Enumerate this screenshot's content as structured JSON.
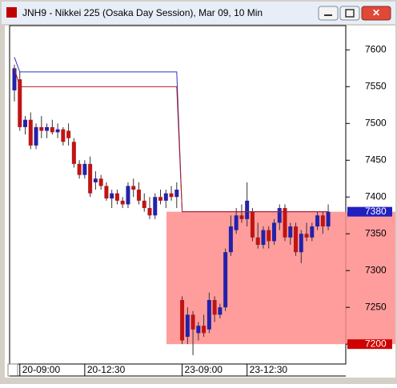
{
  "chart_data": {
    "type": "candlestick",
    "title": "JNH9 - Nikkei 225 (Osaka Day Session), Mar 09, 10 Min",
    "categories": [
      null,
      "20-09:00",
      null,
      null,
      null,
      null,
      null,
      null,
      null,
      null,
      null,
      null,
      null,
      "20-12:30",
      null,
      null,
      null,
      null,
      null,
      null,
      null,
      null,
      null,
      null,
      null,
      null,
      null,
      null,
      null,
      null,
      null,
      "23-09:00",
      null,
      null,
      null,
      null,
      null,
      null,
      null,
      null,
      null,
      null,
      null,
      "23-12:30",
      null,
      null,
      null,
      null,
      null,
      null,
      null,
      null,
      null,
      null,
      null,
      null,
      null,
      null,
      null
    ],
    "open": [
      7545,
      7560,
      7495,
      7505,
      7470,
      7495,
      7490,
      7495,
      7488,
      7492,
      7490,
      7475,
      7445,
      7430,
      7445,
      7420,
      7425,
      7415,
      7398,
      7405,
      7395,
      7390,
      7415,
      7410,
      7395,
      7385,
      7375,
      7400,
      7395,
      7405,
      7400,
      7260,
      7210,
      7240,
      7215,
      7225,
      7220,
      7260,
      7240,
      7250,
      7325,
      7355,
      7375,
      7370,
      7380,
      7345,
      7335,
      7355,
      7340,
      7365,
      7385,
      7345,
      7360,
      7325,
      7350,
      7345,
      7360,
      7375,
      7360
    ],
    "high": [
      7580,
      7570,
      7510,
      7515,
      7500,
      7510,
      7500,
      7505,
      7500,
      7495,
      7500,
      7480,
      7450,
      7450,
      7455,
      7435,
      7430,
      7420,
      7410,
      7410,
      7400,
      7420,
      7425,
      7420,
      7405,
      7400,
      7405,
      7410,
      7410,
      7415,
      7420,
      7265,
      7250,
      7245,
      7230,
      7240,
      7270,
      7265,
      7255,
      7330,
      7375,
      7385,
      7390,
      7420,
      7385,
      7365,
      7360,
      7360,
      7370,
      7390,
      7390,
      7365,
      7365,
      7355,
      7365,
      7365,
      7380,
      7380,
      7390
    ],
    "low": [
      7530,
      7490,
      7485,
      7465,
      7465,
      7480,
      7480,
      7485,
      7480,
      7470,
      7470,
      7440,
      7425,
      7425,
      7400,
      7410,
      7410,
      7395,
      7385,
      7390,
      7385,
      7385,
      7400,
      7390,
      7380,
      7370,
      7370,
      7390,
      7385,
      7395,
      7385,
      7200,
      7200,
      7185,
      7205,
      7210,
      7215,
      7230,
      7235,
      7245,
      7320,
      7350,
      7365,
      7360,
      7340,
      7330,
      7330,
      7330,
      7335,
      7355,
      7340,
      7335,
      7320,
      7310,
      7340,
      7340,
      7355,
      7350,
      7355
    ],
    "close": [
      7575,
      7495,
      7505,
      7470,
      7495,
      7490,
      7495,
      7488,
      7492,
      7475,
      7480,
      7445,
      7430,
      7445,
      7405,
      7425,
      7415,
      7398,
      7405,
      7395,
      7390,
      7415,
      7410,
      7395,
      7385,
      7375,
      7400,
      7395,
      7405,
      7400,
      7410,
      7205,
      7240,
      7220,
      7225,
      7215,
      7260,
      7240,
      7250,
      7325,
      7360,
      7375,
      7370,
      7395,
      7345,
      7335,
      7355,
      7340,
      7365,
      7385,
      7345,
      7360,
      7325,
      7350,
      7345,
      7360,
      7375,
      7360,
      7380
    ],
    "up_color": "#2222aa",
    "down_color": "#c01414",
    "lines": [
      {
        "color": "#3030c8",
        "values": [
          7590,
          7570,
          7570,
          7570,
          7570,
          7570,
          7570,
          7570,
          7570,
          7570,
          7570,
          7570,
          7570,
          7570,
          7570,
          7570,
          7570,
          7570,
          7570,
          7570,
          7570,
          7570,
          7570,
          7570,
          7570,
          7570,
          7570,
          7570,
          7570,
          7570,
          7570,
          7380,
          7380,
          7380,
          7380,
          7380,
          7380,
          7380,
          7380,
          7380,
          7380,
          7380,
          7380,
          7380,
          7380,
          7380,
          7380,
          7380,
          7380,
          7380,
          7380,
          7380,
          7380,
          7380,
          7380,
          7380,
          7380,
          7380,
          7380
        ]
      },
      {
        "color": "#b02020",
        "values": [
          7575,
          7550,
          7550,
          7550,
          7550,
          7550,
          7550,
          7550,
          7550,
          7550,
          7550,
          7550,
          7550,
          7550,
          7550,
          7550,
          7550,
          7550,
          7550,
          7550,
          7550,
          7550,
          7550,
          7550,
          7550,
          7550,
          7550,
          7550,
          7550,
          7550,
          7550,
          7380,
          7380,
          7380,
          7380,
          7380,
          7380,
          7380,
          7380,
          7380,
          7380,
          7380,
          7380,
          7380,
          7380,
          7380,
          7380,
          7380,
          7380,
          7380,
          7380,
          7380,
          7380,
          7380,
          7380,
          7380,
          7380,
          7380,
          7380
        ]
      }
    ],
    "zone": {
      "low": 7200,
      "high": 7380,
      "color": "#ff8c8c",
      "high_color": "#2020c0",
      "low_color": "#d00000"
    },
    "ylim": [
      7173,
      7633
    ],
    "yticks": [
      7200,
      7250,
      7300,
      7350,
      7400,
      7450,
      7500,
      7550,
      7600
    ]
  }
}
